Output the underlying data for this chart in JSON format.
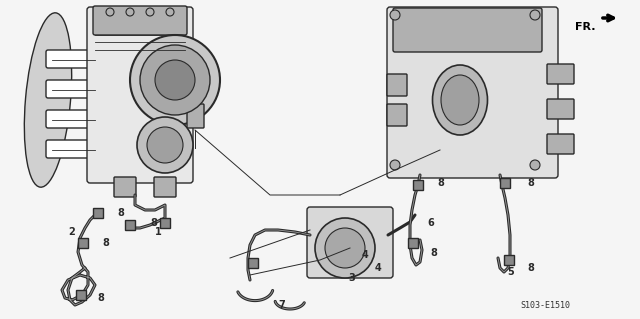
{
  "background_color": "#f5f5f5",
  "line_color": "#2a2a2a",
  "gray_light": "#d0d0d0",
  "gray_mid": "#b0b0b0",
  "gray_dark": "#888888",
  "white": "#ffffff",
  "part_number": "S103-E1510",
  "fr_label": "FR.",
  "label_fs": 7,
  "pn_fs": 6,
  "lw_hose": 2.2,
  "lw_body": 1.0,
  "lw_thin": 0.6
}
